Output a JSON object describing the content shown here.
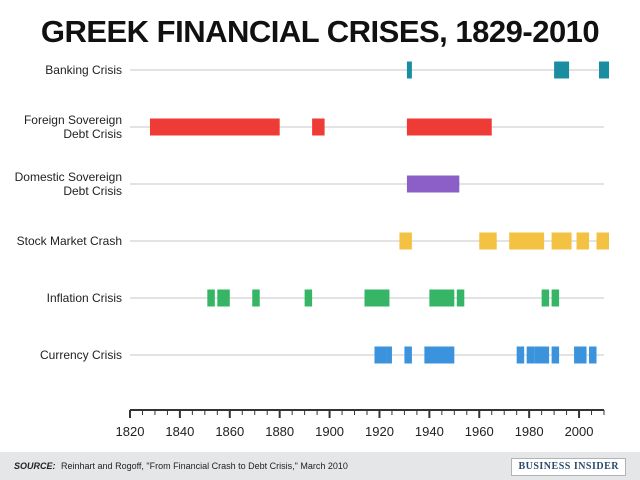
{
  "footer": {
    "source_label": "SOURCE:",
    "source_text": "Reinhart and Rogoff, \"From Financial Crash to Debt Crisis,\" March 2010",
    "brand": "BUSINESS INSIDER"
  },
  "chart_data": {
    "type": "timeline",
    "title": "GREEK FINANCIAL CRISES, 1829-2010",
    "xlim": [
      1820,
      2010
    ],
    "x_ticks": [
      1820,
      1840,
      1860,
      1880,
      1900,
      1920,
      1940,
      1960,
      1980,
      2000
    ],
    "grid": "horizontal row guides",
    "series": [
      {
        "name": "Banking Crisis",
        "color": "#1b8da1",
        "periods": [
          [
            1931,
            1933
          ],
          [
            1990,
            1996
          ],
          [
            2008,
            2012
          ]
        ]
      },
      {
        "name": "Foreign Sovereign Debt Crisis",
        "color": "#ef3b36",
        "periods": [
          [
            1828,
            1880
          ],
          [
            1893,
            1898
          ],
          [
            1931,
            1965
          ]
        ]
      },
      {
        "name": "Domestic Sovereign Debt Crisis",
        "color": "#8b5fc7",
        "periods": [
          [
            1931,
            1952
          ]
        ]
      },
      {
        "name": "Stock Market Crash",
        "color": "#f4c242",
        "periods": [
          [
            1928,
            1933
          ],
          [
            1960,
            1967
          ],
          [
            1972,
            1986
          ],
          [
            1989,
            1997
          ],
          [
            1999,
            2004
          ],
          [
            2007,
            2012
          ]
        ]
      },
      {
        "name": "Inflation Crisis",
        "color": "#35b565",
        "periods": [
          [
            1851,
            1854
          ],
          [
            1855,
            1860
          ],
          [
            1869,
            1872
          ],
          [
            1890,
            1893
          ],
          [
            1914,
            1920
          ],
          [
            1920,
            1924
          ],
          [
            1940,
            1950
          ],
          [
            1951,
            1954
          ],
          [
            1985,
            1988
          ],
          [
            1989,
            1992
          ]
        ]
      },
      {
        "name": "Currency Crisis",
        "color": "#3a93dc",
        "periods": [
          [
            1918,
            1923
          ],
          [
            1923,
            1925
          ],
          [
            1930,
            1933
          ],
          [
            1938,
            1950
          ],
          [
            1975,
            1978
          ],
          [
            1979,
            1982
          ],
          [
            1982,
            1988
          ],
          [
            1989,
            1992
          ],
          [
            1998,
            2003
          ],
          [
            2004,
            2007
          ]
        ]
      }
    ]
  }
}
